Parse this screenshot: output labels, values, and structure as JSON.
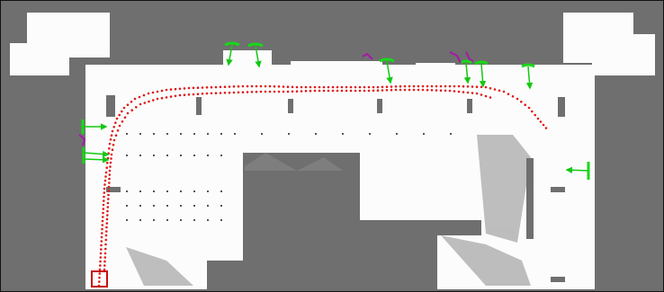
{
  "colors": {
    "occupied": "#6f6f6f",
    "free": "#fcfcfc",
    "border": "#111111",
    "trajectory": "#e01818",
    "detection_marker": "#18d818",
    "detection_arrow": "#12c812",
    "uncertain_marker": "#a818a8",
    "start_marker": "#c81010"
  },
  "map": {
    "type": "occupancy-grid",
    "trajectory_style": "dotted",
    "start_marker_shape": "square",
    "marker_symbol": "arrow"
  }
}
